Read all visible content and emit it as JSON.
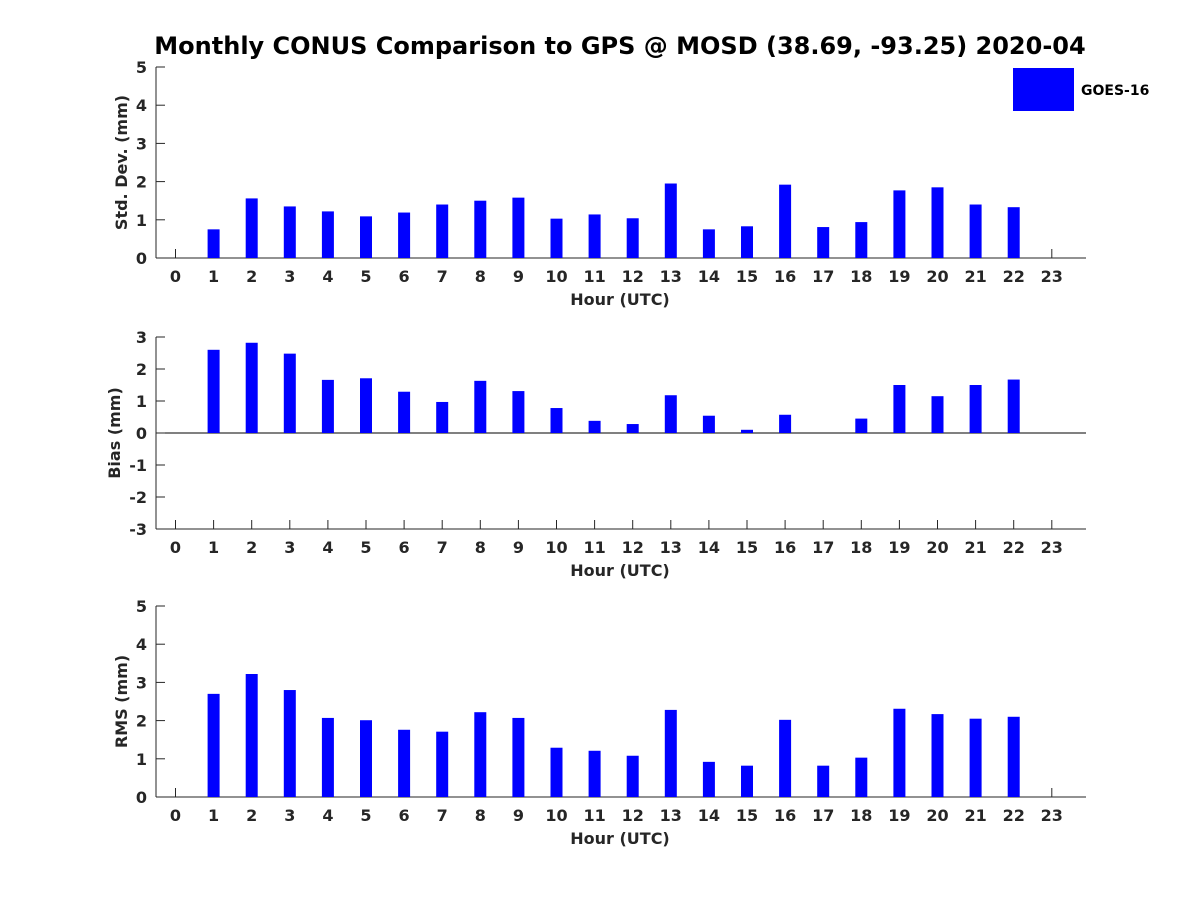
{
  "title": "Monthly CONUS Comparison to GPS @ MOSD (38.69, -93.25) 2020-04",
  "legend": {
    "label": "GOES-16",
    "color": "#0000ff",
    "placement": "top-right"
  },
  "chart_data": [
    {
      "type": "bar",
      "ylabel": "Std. Dev. (mm)",
      "xlabel": "Hour (UTC)",
      "ylim": [
        0,
        5
      ],
      "yticks": [
        0,
        1,
        2,
        3,
        4,
        5
      ],
      "categories": [
        "0",
        "1",
        "2",
        "3",
        "4",
        "5",
        "6",
        "7",
        "8",
        "9",
        "10",
        "11",
        "12",
        "13",
        "14",
        "15",
        "16",
        "17",
        "18",
        "19",
        "20",
        "21",
        "22",
        "23"
      ],
      "series": [
        {
          "name": "GOES-16",
          "color": "#0000ff",
          "values": [
            null,
            0.75,
            1.56,
            1.35,
            1.22,
            1.09,
            1.19,
            1.4,
            1.5,
            1.58,
            1.03,
            1.14,
            1.04,
            1.95,
            0.75,
            0.83,
            1.92,
            0.81,
            0.94,
            1.77,
            1.85,
            1.4,
            1.33,
            null
          ]
        }
      ]
    },
    {
      "type": "bar",
      "ylabel": "Bias (mm)",
      "xlabel": "Hour (UTC)",
      "ylim": [
        -3,
        3
      ],
      "yticks": [
        -3,
        -2,
        -1,
        0,
        1,
        2,
        3
      ],
      "categories": [
        "0",
        "1",
        "2",
        "3",
        "4",
        "5",
        "6",
        "7",
        "8",
        "9",
        "10",
        "11",
        "12",
        "13",
        "14",
        "15",
        "16",
        "17",
        "18",
        "19",
        "20",
        "21",
        "22",
        "23"
      ],
      "series": [
        {
          "name": "GOES-16",
          "color": "#0000ff",
          "values": [
            null,
            2.6,
            2.82,
            2.48,
            1.66,
            1.71,
            1.29,
            0.97,
            1.63,
            1.31,
            0.78,
            0.38,
            0.28,
            1.18,
            0.54,
            0.1,
            0.57,
            null,
            0.45,
            1.5,
            1.15,
            1.5,
            1.67,
            null
          ]
        }
      ]
    },
    {
      "type": "bar",
      "ylabel": "RMS (mm)",
      "xlabel": "Hour (UTC)",
      "ylim": [
        0,
        5
      ],
      "yticks": [
        0,
        1,
        2,
        3,
        4,
        5
      ],
      "categories": [
        "0",
        "1",
        "2",
        "3",
        "4",
        "5",
        "6",
        "7",
        "8",
        "9",
        "10",
        "11",
        "12",
        "13",
        "14",
        "15",
        "16",
        "17",
        "18",
        "19",
        "20",
        "21",
        "22",
        "23"
      ],
      "series": [
        {
          "name": "GOES-16",
          "color": "#0000ff",
          "values": [
            null,
            2.7,
            3.22,
            2.8,
            2.07,
            2.01,
            1.76,
            1.71,
            2.22,
            2.07,
            1.29,
            1.21,
            1.08,
            2.28,
            0.92,
            0.82,
            2.02,
            0.82,
            1.03,
            2.31,
            2.17,
            2.05,
            2.1,
            null
          ]
        }
      ]
    }
  ]
}
